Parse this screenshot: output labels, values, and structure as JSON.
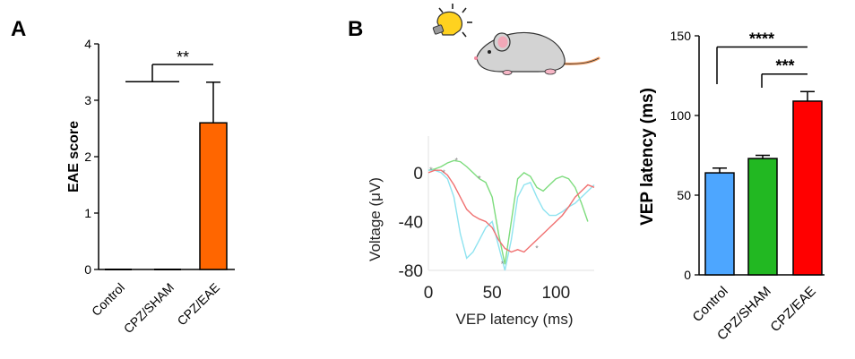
{
  "panel_labels": {
    "a": "A",
    "b": "B"
  },
  "colors": {
    "control": "#4da6ff",
    "sham": "#22b822",
    "eae": "#ff0000",
    "eae_score": "#ff6600",
    "trace_green": "#7ddc7d",
    "trace_cyan": "#8fe3f0",
    "trace_red": "#f07070"
  },
  "chart_data": [
    {
      "type": "bar",
      "panel": "A",
      "title": "",
      "categories": [
        "Control",
        "CPZ/SHAM",
        "CPZ/EAE"
      ],
      "values": [
        0,
        0,
        2.6
      ],
      "errors": [
        0,
        0,
        0.72
      ],
      "ylabel": "EAE score",
      "xlabel": "",
      "ylim": [
        0,
        4
      ],
      "yticks": [
        "0",
        "1",
        "2",
        "3",
        "4"
      ],
      "bracket_level": 3.33,
      "annotations": [
        {
          "from": "Control+CPZ/SHAM",
          "to": "CPZ/EAE",
          "label": "**"
        }
      ]
    },
    {
      "type": "line",
      "panel": "B",
      "title": "",
      "xlabel": "VEP latency (ms)",
      "ylabel": "Voltage (μV)",
      "xlim": [
        0,
        130
      ],
      "ylim": [
        -80,
        30
      ],
      "xticks": [
        "0",
        "50",
        "100"
      ],
      "yticks": [
        "0",
        "-40",
        "-80"
      ],
      "series": [
        {
          "name": "green",
          "x": [
            0,
            5,
            10,
            15,
            20,
            25,
            30,
            35,
            40,
            45,
            50,
            55,
            60,
            65,
            70,
            75,
            80,
            85,
            90,
            95,
            100,
            105,
            110,
            115,
            120,
            125
          ],
          "y": [
            2,
            3,
            5,
            8,
            10,
            9,
            5,
            0,
            -5,
            -8,
            -20,
            -50,
            -75,
            -40,
            -5,
            0,
            -3,
            -12,
            -15,
            -10,
            -5,
            -3,
            -5,
            -12,
            -25,
            -40
          ]
        },
        {
          "name": "cyan",
          "x": [
            0,
            5,
            10,
            15,
            20,
            25,
            30,
            35,
            40,
            45,
            50,
            55,
            60,
            65,
            70,
            75,
            80,
            85,
            90,
            95,
            100,
            105,
            110,
            115,
            120,
            125,
            130
          ],
          "y": [
            2,
            2,
            0,
            -5,
            -20,
            -50,
            -70,
            -65,
            -55,
            -45,
            -40,
            -60,
            -80,
            -55,
            -20,
            -10,
            -8,
            -20,
            -30,
            -35,
            -35,
            -32,
            -28,
            -25,
            -20,
            -15,
            -10
          ]
        },
        {
          "name": "red",
          "x": [
            0,
            5,
            10,
            15,
            20,
            25,
            30,
            35,
            40,
            45,
            50,
            55,
            60,
            65,
            70,
            75,
            80,
            85,
            90,
            95,
            100,
            105,
            110,
            115,
            120,
            125,
            130
          ],
          "y": [
            0,
            2,
            2,
            -2,
            -10,
            -20,
            -30,
            -35,
            -38,
            -40,
            -45,
            -55,
            -62,
            -65,
            -63,
            -65,
            -60,
            -55,
            -50,
            -45,
            -40,
            -35,
            -28,
            -20,
            -15,
            -10,
            -12
          ]
        }
      ],
      "markers": [
        {
          "x": 2,
          "y": 2
        },
        {
          "x": 22,
          "y": 10
        },
        {
          "x": 12,
          "y": 0
        },
        {
          "x": 40,
          "y": -5
        },
        {
          "x": 58,
          "y": -75
        },
        {
          "x": 85,
          "y": -62
        }
      ]
    },
    {
      "type": "bar",
      "panel": "B",
      "title": "",
      "categories": [
        "Control",
        "CPZ/SHAM",
        "CPZ/EAE"
      ],
      "values": [
        64,
        73,
        109
      ],
      "errors": [
        3,
        2,
        6
      ],
      "ylabel": "VEP latency (ms)",
      "xlabel": "",
      "ylim": [
        0,
        150
      ],
      "yticks": [
        "0",
        "50",
        "100",
        "150"
      ],
      "annotations": [
        {
          "from": "Control",
          "to": "CPZ/EAE",
          "label": "****",
          "level": 143
        },
        {
          "from": "CPZ/SHAM",
          "to": "CPZ/EAE",
          "label": "***",
          "level": 126
        }
      ]
    }
  ]
}
